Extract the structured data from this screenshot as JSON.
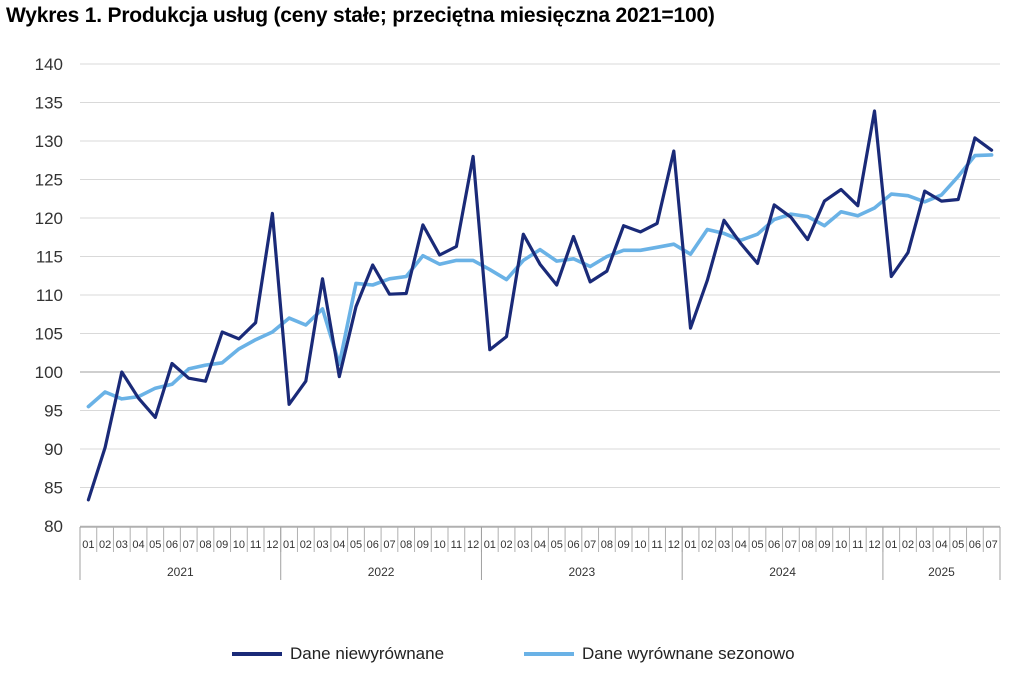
{
  "title": "Wykres 1. Produkcja usług (ceny stałe; przeciętna miesięczna 2021=100)",
  "colors": {
    "unadjusted": "#1a2a78",
    "seasonal": "#6ab2e6",
    "grid": "#d9d9d9",
    "axis": "#888888"
  },
  "chart_data": {
    "type": "line",
    "title": "Wykres 1. Produkcja usług (ceny stałe; przeciętna miesięczna 2021=100)",
    "xlabel": "",
    "ylabel": "",
    "ylim": [
      80,
      140
    ],
    "yticks": [
      80,
      85,
      90,
      95,
      100,
      105,
      110,
      115,
      120,
      125,
      130,
      135,
      140
    ],
    "grid": true,
    "legend_position": "bottom",
    "month_labels": [
      "01",
      "02",
      "03",
      "04",
      "05",
      "06",
      "07",
      "08",
      "09",
      "10",
      "11",
      "12",
      "01",
      "02",
      "03",
      "04",
      "05",
      "06",
      "07",
      "08",
      "09",
      "10",
      "11",
      "12",
      "01",
      "02",
      "03",
      "04",
      "05",
      "06",
      "07",
      "08",
      "09",
      "10",
      "11",
      "12",
      "01",
      "02",
      "03",
      "04",
      "05",
      "06",
      "07",
      "08",
      "09",
      "10",
      "11",
      "12",
      "01",
      "02",
      "03",
      "04",
      "05",
      "06",
      "07"
    ],
    "years": [
      {
        "label": "2021",
        "months": 12
      },
      {
        "label": "2022",
        "months": 12
      },
      {
        "label": "2023",
        "months": 12
      },
      {
        "label": "2024",
        "months": 12
      },
      {
        "label": "2025",
        "months": 7
      }
    ],
    "series": [
      {
        "name": "Dane niewyrównane",
        "values": [
          83.4,
          90.2,
          100.0,
          96.6,
          94.1,
          101.1,
          99.2,
          98.8,
          105.2,
          104.3,
          106.4,
          120.6,
          95.8,
          98.8,
          112.1,
          99.4,
          108.5,
          113.9,
          110.1,
          110.2,
          119.1,
          115.2,
          116.3,
          128.0,
          102.9,
          104.6,
          117.9,
          114.0,
          111.3,
          117.6,
          111.7,
          113.1,
          119.0,
          118.2,
          119.3,
          128.7,
          105.7,
          111.9,
          119.7,
          116.7,
          114.1,
          121.7,
          120.1,
          117.2,
          122.2,
          123.7,
          121.6,
          133.9,
          112.4,
          115.5,
          123.5,
          122.2,
          122.4,
          130.4,
          128.8
        ]
      },
      {
        "name": "Dane wyrównane sezonowo",
        "values": [
          95.5,
          97.4,
          96.5,
          96.8,
          97.9,
          98.4,
          100.4,
          100.9,
          101.2,
          103.0,
          104.2,
          105.2,
          107.0,
          106.1,
          108.2,
          101.0,
          111.5,
          111.3,
          112.1,
          112.4,
          115.1,
          114.0,
          114.5,
          114.5,
          113.3,
          112.0,
          114.5,
          115.9,
          114.4,
          114.7,
          113.7,
          115.0,
          115.8,
          115.8,
          116.2,
          116.6,
          115.3,
          118.5,
          118.0,
          117.1,
          117.9,
          119.8,
          120.5,
          120.2,
          119.0,
          120.8,
          120.3,
          121.3,
          123.1,
          122.9,
          122.1,
          123.0,
          125.4,
          128.1,
          128.2
        ]
      }
    ]
  }
}
